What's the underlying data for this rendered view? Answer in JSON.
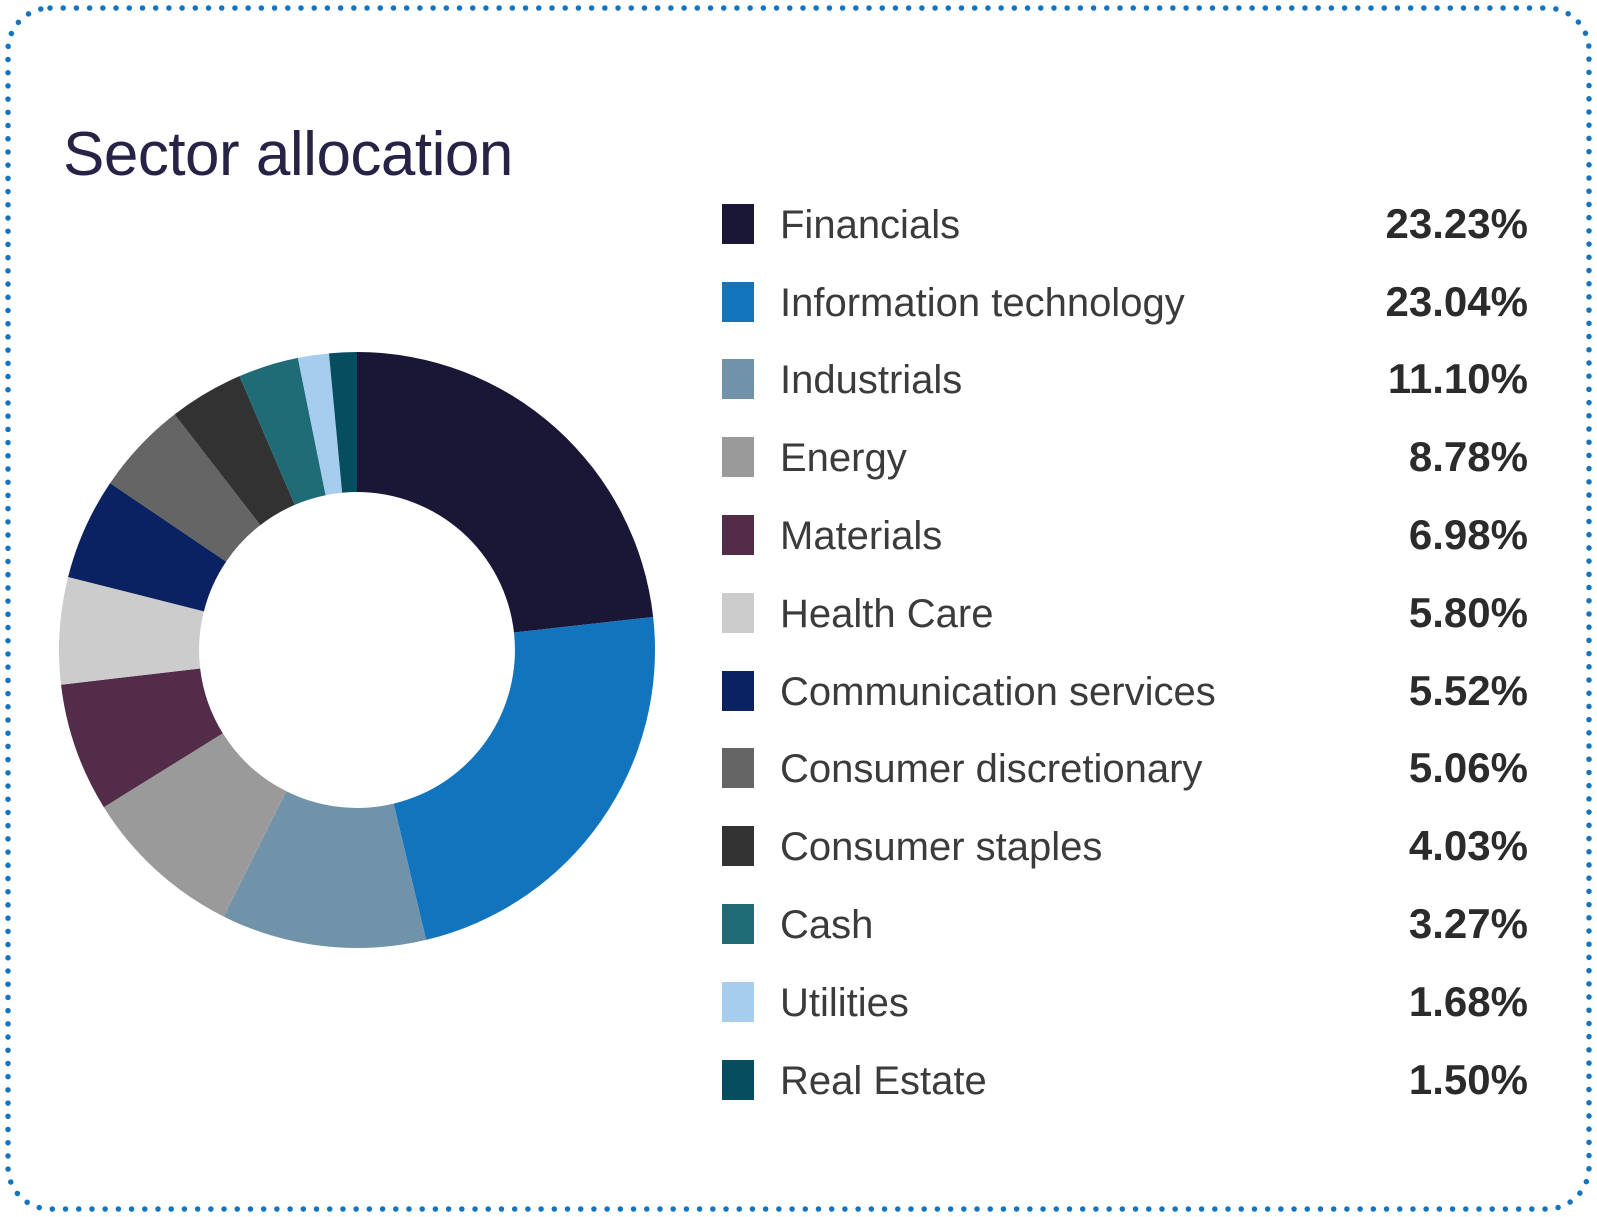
{
  "title": "Sector allocation",
  "chart_data": {
    "type": "pie",
    "subtype": "donut",
    "start_angle_deg": 0,
    "direction": "clockwise",
    "inner_radius_ratio": 0.53,
    "legend_position": "right",
    "segments": [
      {
        "label": "Financials",
        "value": 23.23,
        "display": "23.23%",
        "color": "#1a1635"
      },
      {
        "label": "Information technology",
        "value": 23.04,
        "display": "23.04%",
        "color": "#1274bc"
      },
      {
        "label": "Industrials",
        "value": 11.1,
        "display": "11.10%",
        "color": "#7193aa"
      },
      {
        "label": "Energy",
        "value": 8.78,
        "display": "8.78%",
        "color": "#9a9a9a"
      },
      {
        "label": "Materials",
        "value": 6.98,
        "display": "6.98%",
        "color": "#522c49"
      },
      {
        "label": "Health Care",
        "value": 5.8,
        "display": "5.80%",
        "color": "#cccccc"
      },
      {
        "label": "Communication services",
        "value": 5.52,
        "display": "5.52%",
        "color": "#0a2162"
      },
      {
        "label": "Consumer discretionary",
        "value": 5.06,
        "display": "5.06%",
        "color": "#656565"
      },
      {
        "label": "Consumer staples",
        "value": 4.03,
        "display": "4.03%",
        "color": "#323233"
      },
      {
        "label": "Cash",
        "value": 3.27,
        "display": "3.27%",
        "color": "#206c76"
      },
      {
        "label": "Utilities",
        "value": 1.68,
        "display": "1.68%",
        "color": "#a6cdee"
      },
      {
        "label": "Real Estate",
        "value": 1.5,
        "display": "1.50%",
        "color": "#064d60"
      }
    ]
  },
  "style": {
    "border_color": "#1474c0",
    "title_color": "#262347",
    "label_color": "#3b3b3b",
    "value_color": "#2b2b2b"
  }
}
